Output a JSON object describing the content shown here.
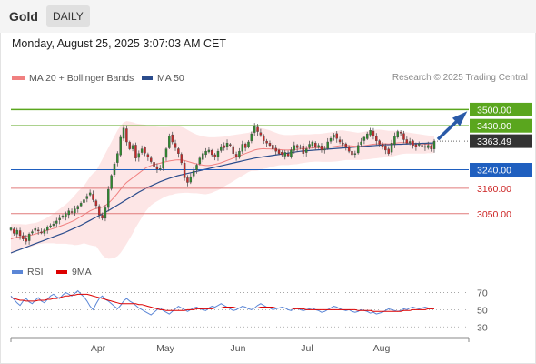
{
  "header": {
    "symbol": "Gold",
    "timeframe": "DAILY",
    "datetime": "Monday, August 25, 2025 3:07:03 AM CET"
  },
  "legend": {
    "ma20_label": "MA 20 + Bollinger Bands",
    "ma50_label": "MA 50",
    "credit": "Research © 2025 Trading Central",
    "rsi_label": "RSI",
    "rsi_ma_label": "9MA"
  },
  "colors": {
    "ma20": "#f08080",
    "bollinger_fill": "#fde2e2",
    "ma50": "#2b4c8c",
    "resistance": "#5aa61e",
    "pivot": "#1f5fbf",
    "support": "#e07a7a",
    "current": "#333333",
    "arrow": "#2a5aa8",
    "rsi": "#5b86d6",
    "rsi_ma": "#dd0000"
  },
  "chart_data": [
    {
      "type": "candlestick",
      "title": "Gold",
      "timeframe": "DAILY",
      "x_months": [
        "Apr",
        "May",
        "Jun",
        "Jul",
        "Aug"
      ],
      "ylim": [
        2880,
        3600
      ],
      "price_levels": [
        {
          "label": "3500.00",
          "value": 3500,
          "kind": "resistance"
        },
        {
          "label": "3430.00",
          "value": 3430,
          "kind": "resistance"
        },
        {
          "label": "3363.49",
          "value": 3363.49,
          "kind": "current"
        },
        {
          "label": "3240.00",
          "value": 3240,
          "kind": "pivot"
        },
        {
          "label": "3160.00",
          "value": 3160,
          "kind": "support"
        },
        {
          "label": "3050.00",
          "value": 3050,
          "kind": "support"
        }
      ],
      "close_series": [
        2988,
        2965,
        2978,
        2955,
        2940,
        2930,
        2962,
        2972,
        2985,
        2975,
        2968,
        2980,
        2992,
        2998,
        3005,
        3018,
        3030,
        3040,
        3050,
        3062,
        3055,
        3070,
        3082,
        3095,
        3110,
        3125,
        3140,
        3110,
        3085,
        3045,
        3030,
        3075,
        3155,
        3215,
        3265,
        3310,
        3380,
        3420,
        3360,
        3330,
        3345,
        3290,
        3310,
        3330,
        3312,
        3295,
        3275,
        3255,
        3242,
        3245,
        3290,
        3330,
        3385,
        3360,
        3335,
        3310,
        3270,
        3205,
        3185,
        3210,
        3235,
        3260,
        3290,
        3310,
        3320,
        3325,
        3305,
        3295,
        3320,
        3340,
        3335,
        3355,
        3345,
        3310,
        3295,
        3320,
        3350,
        3335,
        3360,
        3395,
        3430,
        3405,
        3390,
        3365,
        3355,
        3345,
        3330,
        3320,
        3310,
        3305,
        3315,
        3300,
        3325,
        3345,
        3335,
        3340,
        3310,
        3330,
        3350,
        3360,
        3340,
        3345,
        3325,
        3330,
        3360,
        3375,
        3390,
        3375,
        3360,
        3355,
        3340,
        3320,
        3305,
        3310,
        3345,
        3360,
        3380,
        3395,
        3410,
        3385,
        3365,
        3350,
        3340,
        3325,
        3310,
        3355,
        3385,
        3405,
        3398,
        3370,
        3355,
        3362,
        3345,
        3340,
        3352,
        3345,
        3338,
        3345,
        3330,
        3363.49
      ],
      "ma20": [
        2940,
        2945,
        2948,
        2950,
        2952,
        2953,
        2955,
        2958,
        2962,
        2966,
        2970,
        2974,
        2978,
        2982,
        2986,
        2990,
        2995,
        3000,
        3005,
        3010,
        3016,
        3022,
        3030,
        3038,
        3046,
        3054,
        3062,
        3068,
        3072,
        3075,
        3078,
        3085,
        3095,
        3108,
        3122,
        3138,
        3155,
        3172,
        3185,
        3195,
        3205,
        3215,
        3225,
        3235,
        3245,
        3252,
        3258,
        3262,
        3265,
        3268,
        3272,
        3275,
        3278,
        3280,
        3282,
        3283,
        3282,
        3280,
        3276,
        3272,
        3268,
        3265,
        3262,
        3260,
        3258,
        3258,
        3260,
        3263,
        3266,
        3270,
        3275,
        3280,
        3285,
        3290,
        3295,
        3300,
        3305,
        3310,
        3315,
        3320,
        3325,
        3328,
        3330,
        3331,
        3330,
        3330,
        3329,
        3328,
        3327,
        3326,
        3325,
        3325,
        3326,
        3327,
        3328,
        3330,
        3331,
        3332,
        3333,
        3334,
        3335,
        3335,
        3335,
        3336,
        3337,
        3338,
        3340,
        3342,
        3344,
        3345,
        3345,
        3344,
        3343,
        3342,
        3341,
        3342,
        3344,
        3346,
        3348,
        3350,
        3351,
        3352,
        3352,
        3352,
        3351,
        3352,
        3354,
        3356,
        3357,
        3357,
        3356,
        3355,
        3354,
        3353,
        3352,
        3351,
        3350,
        3350,
        3349,
        3349
      ],
      "bb_upper": [
        3005,
        3006,
        3005,
        3005,
        3004,
        3003,
        3006,
        3008,
        3010,
        3014,
        3020,
        3026,
        3034,
        3042,
        3050,
        3060,
        3070,
        3080,
        3090,
        3102,
        3115,
        3130,
        3145,
        3158,
        3170,
        3190,
        3210,
        3225,
        3235,
        3260,
        3285,
        3310,
        3335,
        3360,
        3385,
        3410,
        3430,
        3445,
        3450,
        3448,
        3445,
        3440,
        3438,
        3436,
        3435,
        3432,
        3430,
        3428,
        3426,
        3425,
        3425,
        3425,
        3426,
        3428,
        3428,
        3428,
        3425,
        3420,
        3412,
        3405,
        3398,
        3392,
        3388,
        3385,
        3382,
        3380,
        3380,
        3380,
        3381,
        3382,
        3383,
        3385,
        3388,
        3390,
        3392,
        3394,
        3396,
        3398,
        3400,
        3405,
        3415,
        3420,
        3420,
        3418,
        3414,
        3410,
        3405,
        3400,
        3395,
        3392,
        3390,
        3390,
        3390,
        3391,
        3392,
        3393,
        3393,
        3393,
        3393,
        3394,
        3395,
        3395,
        3396,
        3398,
        3400,
        3402,
        3405,
        3408,
        3410,
        3410,
        3408,
        3406,
        3404,
        3402,
        3400,
        3402,
        3404,
        3407,
        3410,
        3412,
        3413,
        3413,
        3412,
        3410,
        3408,
        3408,
        3408,
        3408,
        3407,
        3405,
        3402,
        3400,
        3398,
        3396,
        3394,
        3392,
        3390,
        3388,
        3387,
        3385
      ],
      "bb_lower": [
        2875,
        2884,
        2891,
        2895,
        2900,
        2903,
        2904,
        2908,
        2914,
        2918,
        2920,
        2922,
        2922,
        2922,
        2922,
        2920,
        2920,
        2920,
        2920,
        2918,
        2917,
        2914,
        2915,
        2918,
        2922,
        2918,
        2914,
        2911,
        2909,
        2890,
        2871,
        2860,
        2855,
        2856,
        2859,
        2866,
        2880,
        2899,
        2920,
        2942,
        2965,
        2990,
        3012,
        3034,
        3055,
        3072,
        3086,
        3096,
        3104,
        3111,
        3119,
        3125,
        3130,
        3132,
        3136,
        3138,
        3139,
        3140,
        3140,
        3139,
        3138,
        3138,
        3136,
        3135,
        3134,
        3136,
        3140,
        3146,
        3151,
        3158,
        3167,
        3175,
        3182,
        3190,
        3198,
        3206,
        3214,
        3222,
        3230,
        3235,
        3235,
        3236,
        3240,
        3244,
        3246,
        3250,
        3253,
        3256,
        3259,
        3260,
        3260,
        3260,
        3262,
        3263,
        3264,
        3267,
        3269,
        3271,
        3273,
        3274,
        3275,
        3275,
        3274,
        3274,
        3274,
        3274,
        3275,
        3276,
        3278,
        3280,
        3282,
        3282,
        3282,
        3282,
        3282,
        3282,
        3284,
        3285,
        3286,
        3288,
        3289,
        3291,
        3292,
        3294,
        3294,
        3296,
        3300,
        3304,
        3307,
        3309,
        3310,
        3310,
        3310,
        3310,
        3310,
        3310,
        3310,
        3312,
        3311,
        3313
      ],
      "ma50": [
        2880,
        2885,
        2890,
        2895,
        2900,
        2905,
        2910,
        2915,
        2920,
        2925,
        2930,
        2935,
        2940,
        2945,
        2950,
        2955,
        2960,
        2965,
        2970,
        2976,
        2982,
        2988,
        2994,
        3000,
        3007,
        3014,
        3021,
        3028,
        3035,
        3042,
        3049,
        3056,
        3063,
        3071,
        3079,
        3087,
        3095,
        3103,
        3111,
        3119,
        3127,
        3135,
        3143,
        3150,
        3157,
        3164,
        3170,
        3176,
        3182,
        3188,
        3193,
        3198,
        3203,
        3207,
        3211,
        3215,
        3218,
        3221,
        3224,
        3227,
        3230,
        3233,
        3236,
        3239,
        3242,
        3245,
        3248,
        3251,
        3254,
        3257,
        3260,
        3263,
        3266,
        3269,
        3272,
        3275,
        3278,
        3281,
        3284,
        3287,
        3290,
        3292,
        3294,
        3296,
        3298,
        3300,
        3302,
        3304,
        3306,
        3308,
        3310,
        3312,
        3314,
        3316,
        3318,
        3320,
        3321,
        3322,
        3323,
        3324,
        3325,
        3326,
        3327,
        3328,
        3329,
        3330,
        3331,
        3332,
        3333,
        3334,
        3335,
        3336,
        3337,
        3338,
        3339,
        3340,
        3341,
        3342,
        3343,
        3344,
        3345,
        3346,
        3347,
        3348,
        3348,
        3349,
        3349,
        3350,
        3350,
        3351,
        3351,
        3352,
        3352,
        3353,
        3353,
        3354,
        3354,
        3355,
        3355,
        3356
      ],
      "projection": {
        "from": 3363.49,
        "to": 3500
      }
    },
    {
      "type": "line",
      "title": "RSI",
      "series": [
        {
          "name": "RSI",
          "values": [
            66,
            62,
            58,
            55,
            60,
            63,
            59,
            57,
            61,
            64,
            60,
            58,
            62,
            66,
            68,
            65,
            63,
            67,
            70,
            68,
            66,
            69,
            72,
            68,
            65,
            60,
            54,
            50,
            57,
            63,
            66,
            62,
            60,
            57,
            54,
            51,
            55,
            60,
            63,
            60,
            58,
            55,
            52,
            50,
            48,
            46,
            44,
            47,
            50,
            52,
            49,
            47,
            45,
            48,
            51,
            54,
            52,
            50,
            48,
            50,
            52,
            53,
            51,
            50,
            49,
            52,
            54,
            53,
            55,
            57,
            55,
            53,
            51,
            49,
            50,
            52,
            54,
            53,
            51,
            50,
            52,
            55,
            57,
            55,
            53,
            52,
            50,
            51,
            52,
            53,
            52,
            50,
            49,
            51,
            52,
            50,
            49,
            50,
            51,
            52,
            50,
            49,
            47,
            48,
            50,
            52,
            54,
            53,
            51,
            50,
            49,
            50,
            48,
            47,
            48,
            50,
            49,
            48,
            46,
            47,
            45,
            46,
            47,
            49,
            51,
            50,
            49,
            48,
            49,
            51,
            50,
            52,
            53,
            52,
            51,
            52,
            53,
            52,
            51,
            52
          ]
        },
        {
          "name": "9MA",
          "values": [
            64,
            63,
            62,
            61,
            61,
            60,
            60,
            60,
            60,
            61,
            61,
            61,
            62,
            62,
            63,
            63,
            64,
            65,
            66,
            66,
            67,
            67,
            68,
            68,
            68,
            68,
            67,
            66,
            65,
            64,
            63,
            62,
            61,
            60,
            59,
            58,
            57,
            57,
            57,
            57,
            57,
            57,
            56,
            56,
            55,
            54,
            53,
            52,
            51,
            50,
            50,
            49,
            49,
            49,
            49,
            49,
            49,
            49,
            50,
            50,
            50,
            51,
            51,
            51,
            51,
            51,
            51,
            52,
            52,
            52,
            53,
            53,
            53,
            53,
            52,
            52,
            52,
            52,
            52,
            52,
            52,
            52,
            53,
            53,
            53,
            53,
            53,
            52,
            52,
            52,
            52,
            52,
            52,
            51,
            51,
            51,
            51,
            50,
            50,
            50,
            50,
            50,
            50,
            50,
            50,
            50,
            50,
            50,
            50,
            50,
            50,
            50,
            50,
            50,
            49,
            49,
            49,
            49,
            49,
            48,
            48,
            48,
            48,
            48,
            48,
            48,
            48,
            48,
            48,
            49,
            49,
            49,
            50,
            50,
            50,
            50,
            50,
            51,
            51,
            51
          ]
        }
      ],
      "yticks": [
        70,
        50,
        30
      ],
      "ylim": [
        25,
        80
      ]
    }
  ]
}
